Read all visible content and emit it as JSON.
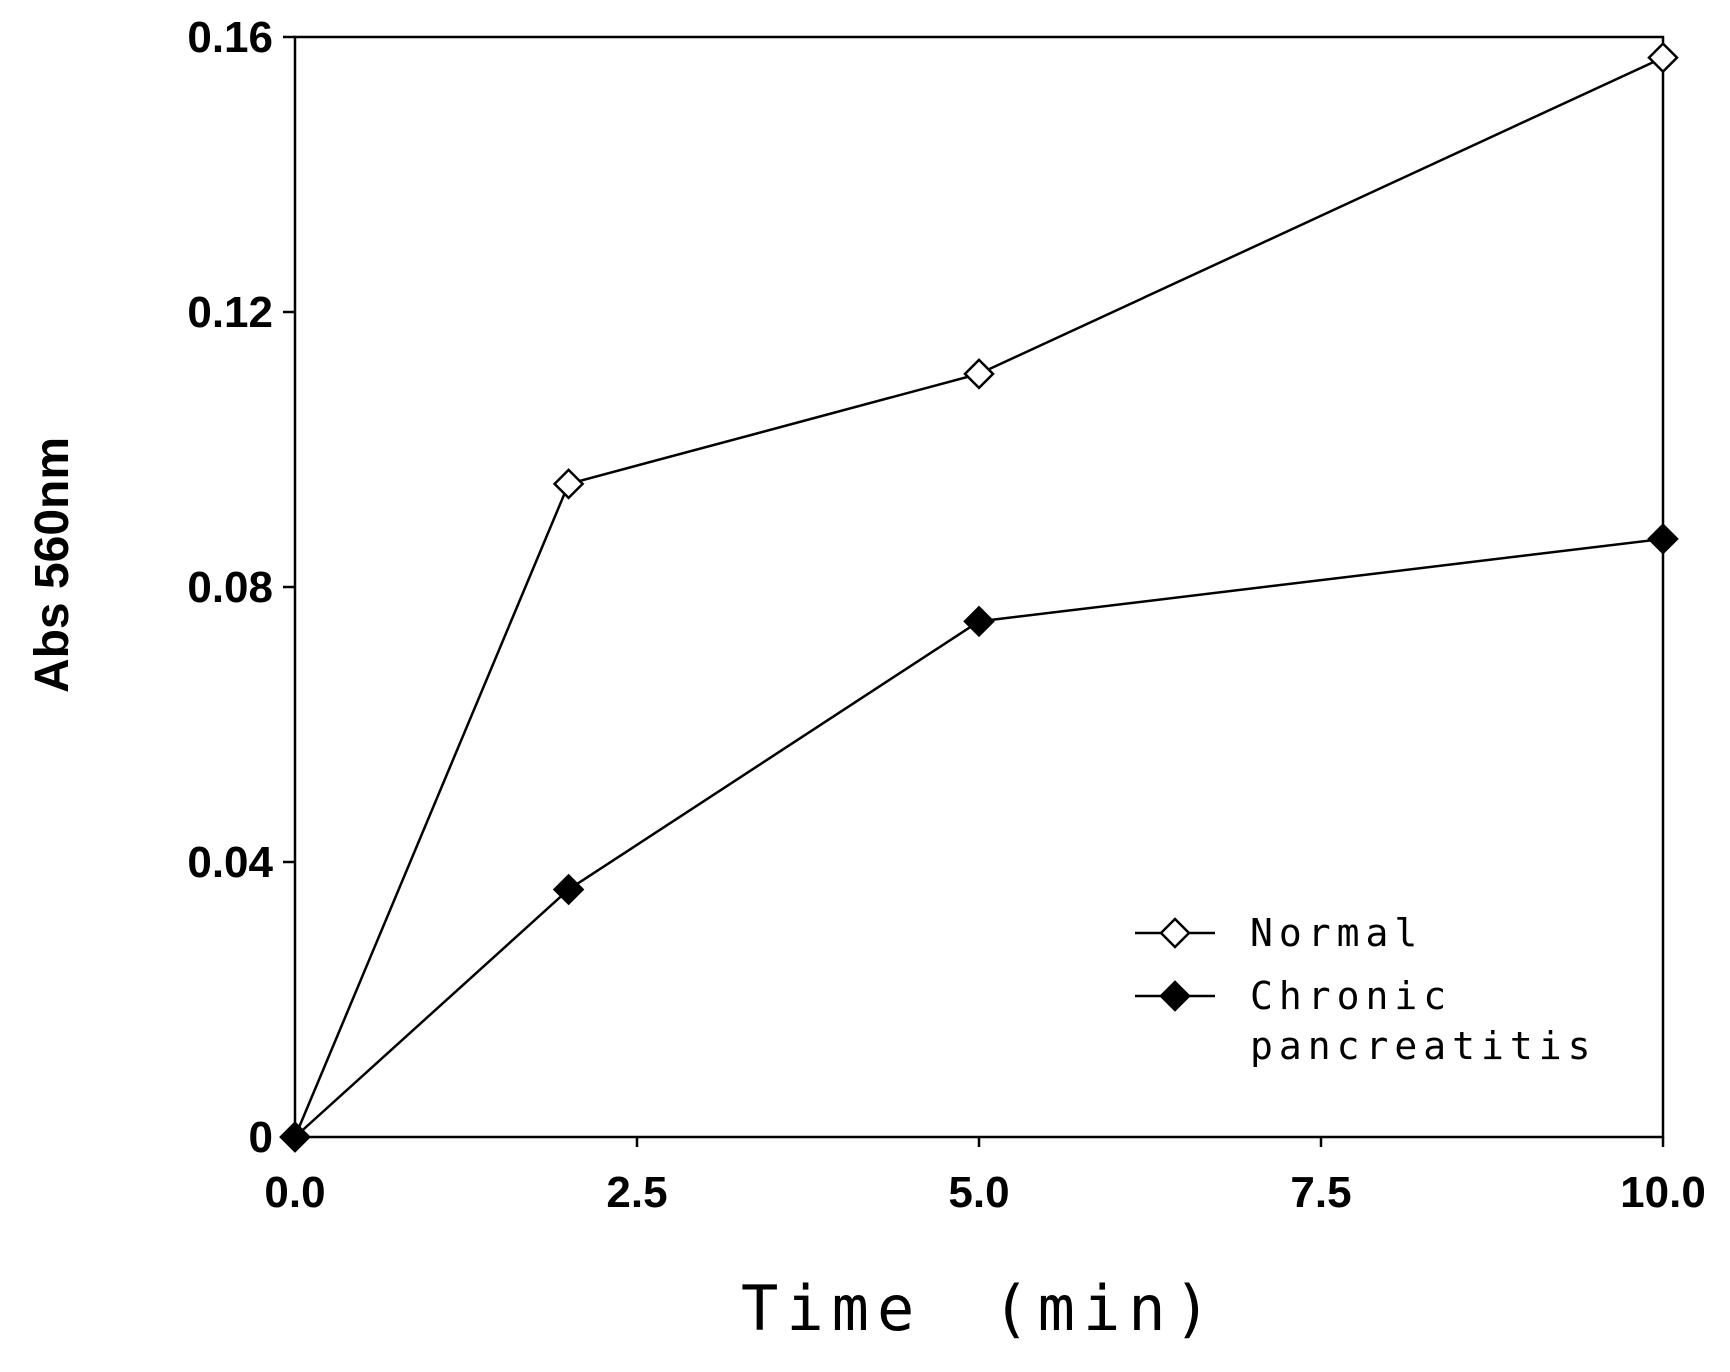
{
  "chart_data": {
    "type": "line",
    "xlabel": "Time　(min)",
    "ylabel": "Abs 560nm",
    "xlim": [
      0,
      10
    ],
    "ylim": [
      0,
      0.16
    ],
    "x_ticks": [
      0,
      2.5,
      5,
      7.5,
      10
    ],
    "x_tick_labels": [
      "0.0",
      "2.5",
      "5.0",
      "7.5",
      "10.0"
    ],
    "y_ticks": [
      0,
      0.04,
      0.08,
      0.12,
      0.16
    ],
    "y_tick_labels": [
      "0",
      "0.04",
      "0.08",
      "0.12",
      "0.16"
    ],
    "grid": false,
    "legend_position": "bottom-right",
    "series": [
      {
        "name": "Normal",
        "marker": "open-diamond",
        "x": [
          0,
          2,
          5,
          10
        ],
        "y": [
          0,
          0.095,
          0.111,
          0.157
        ]
      },
      {
        "name": "Chronic pancreatitis",
        "legend_lines": [
          "Chronic",
          "pancreatitis"
        ],
        "marker": "filled-diamond",
        "x": [
          0,
          2,
          5,
          10
        ],
        "y": [
          0,
          0.036,
          0.075,
          0.087
        ]
      }
    ]
  }
}
